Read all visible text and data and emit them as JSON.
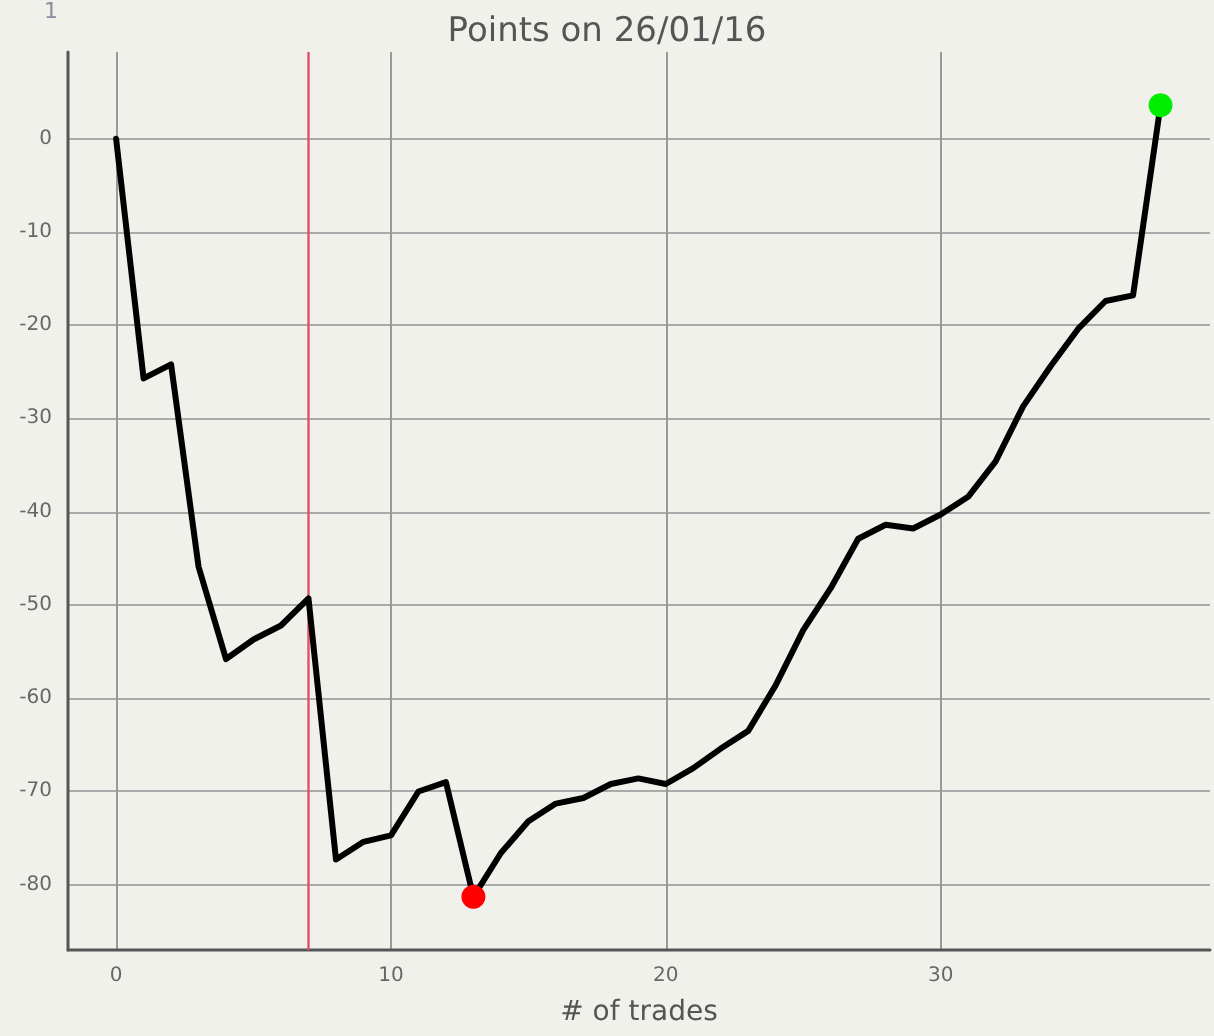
{
  "chart_data": {
    "type": "line",
    "title": "Points on 26/01/16",
    "xlabel": "# of trades",
    "annotations": [
      "1"
    ],
    "xlim": [
      -1.75,
      39.8
    ],
    "ylim": [
      -87,
      9.3
    ],
    "xticks": [
      0,
      10,
      20,
      30
    ],
    "yticks": [
      -80,
      -70,
      -60,
      -50,
      -40,
      -30,
      -20,
      -10,
      0
    ],
    "grid": true,
    "series": [
      {
        "color": "#000000",
        "marker": "none",
        "line_style": "solid",
        "x": [
          0,
          1,
          2,
          3,
          4,
          5,
          6,
          7,
          8,
          9,
          10,
          11,
          12,
          13,
          14,
          15,
          16,
          17,
          18,
          19,
          20,
          21,
          22,
          23,
          24,
          25,
          26,
          27,
          28,
          29,
          30,
          31,
          32,
          33,
          34,
          35,
          36,
          37,
          38
        ],
        "values": [
          0,
          -25.7,
          -24.2,
          -45.9,
          -55.8,
          -53.7,
          -52.2,
          -49.3,
          -77.3,
          -75.4,
          -74.7,
          -70,
          -69,
          -81.3,
          -76.6,
          -73.2,
          -71.3,
          -70.7,
          -69.2,
          -68.6,
          -69.2,
          -67.5,
          -65.4,
          -63.5,
          -58.6,
          -52.7,
          -48.2,
          -42.9,
          -41.4,
          -41.8,
          -40.3,
          -38.4,
          -34.6,
          -28.7,
          -24.4,
          -20.4,
          -17.4,
          -16.8,
          3.6
        ]
      },
      {
        "type": "scatter",
        "color": "#ff0000",
        "marker": "circle",
        "x": [
          13
        ],
        "values": [
          -81.3
        ]
      },
      {
        "type": "scatter",
        "color": "#00ee00",
        "marker": "circle",
        "x": [
          38
        ],
        "values": [
          3.6
        ]
      }
    ],
    "ref_lines": [
      {
        "axis": "x",
        "value": 7,
        "color": "#e0506a"
      }
    ]
  }
}
